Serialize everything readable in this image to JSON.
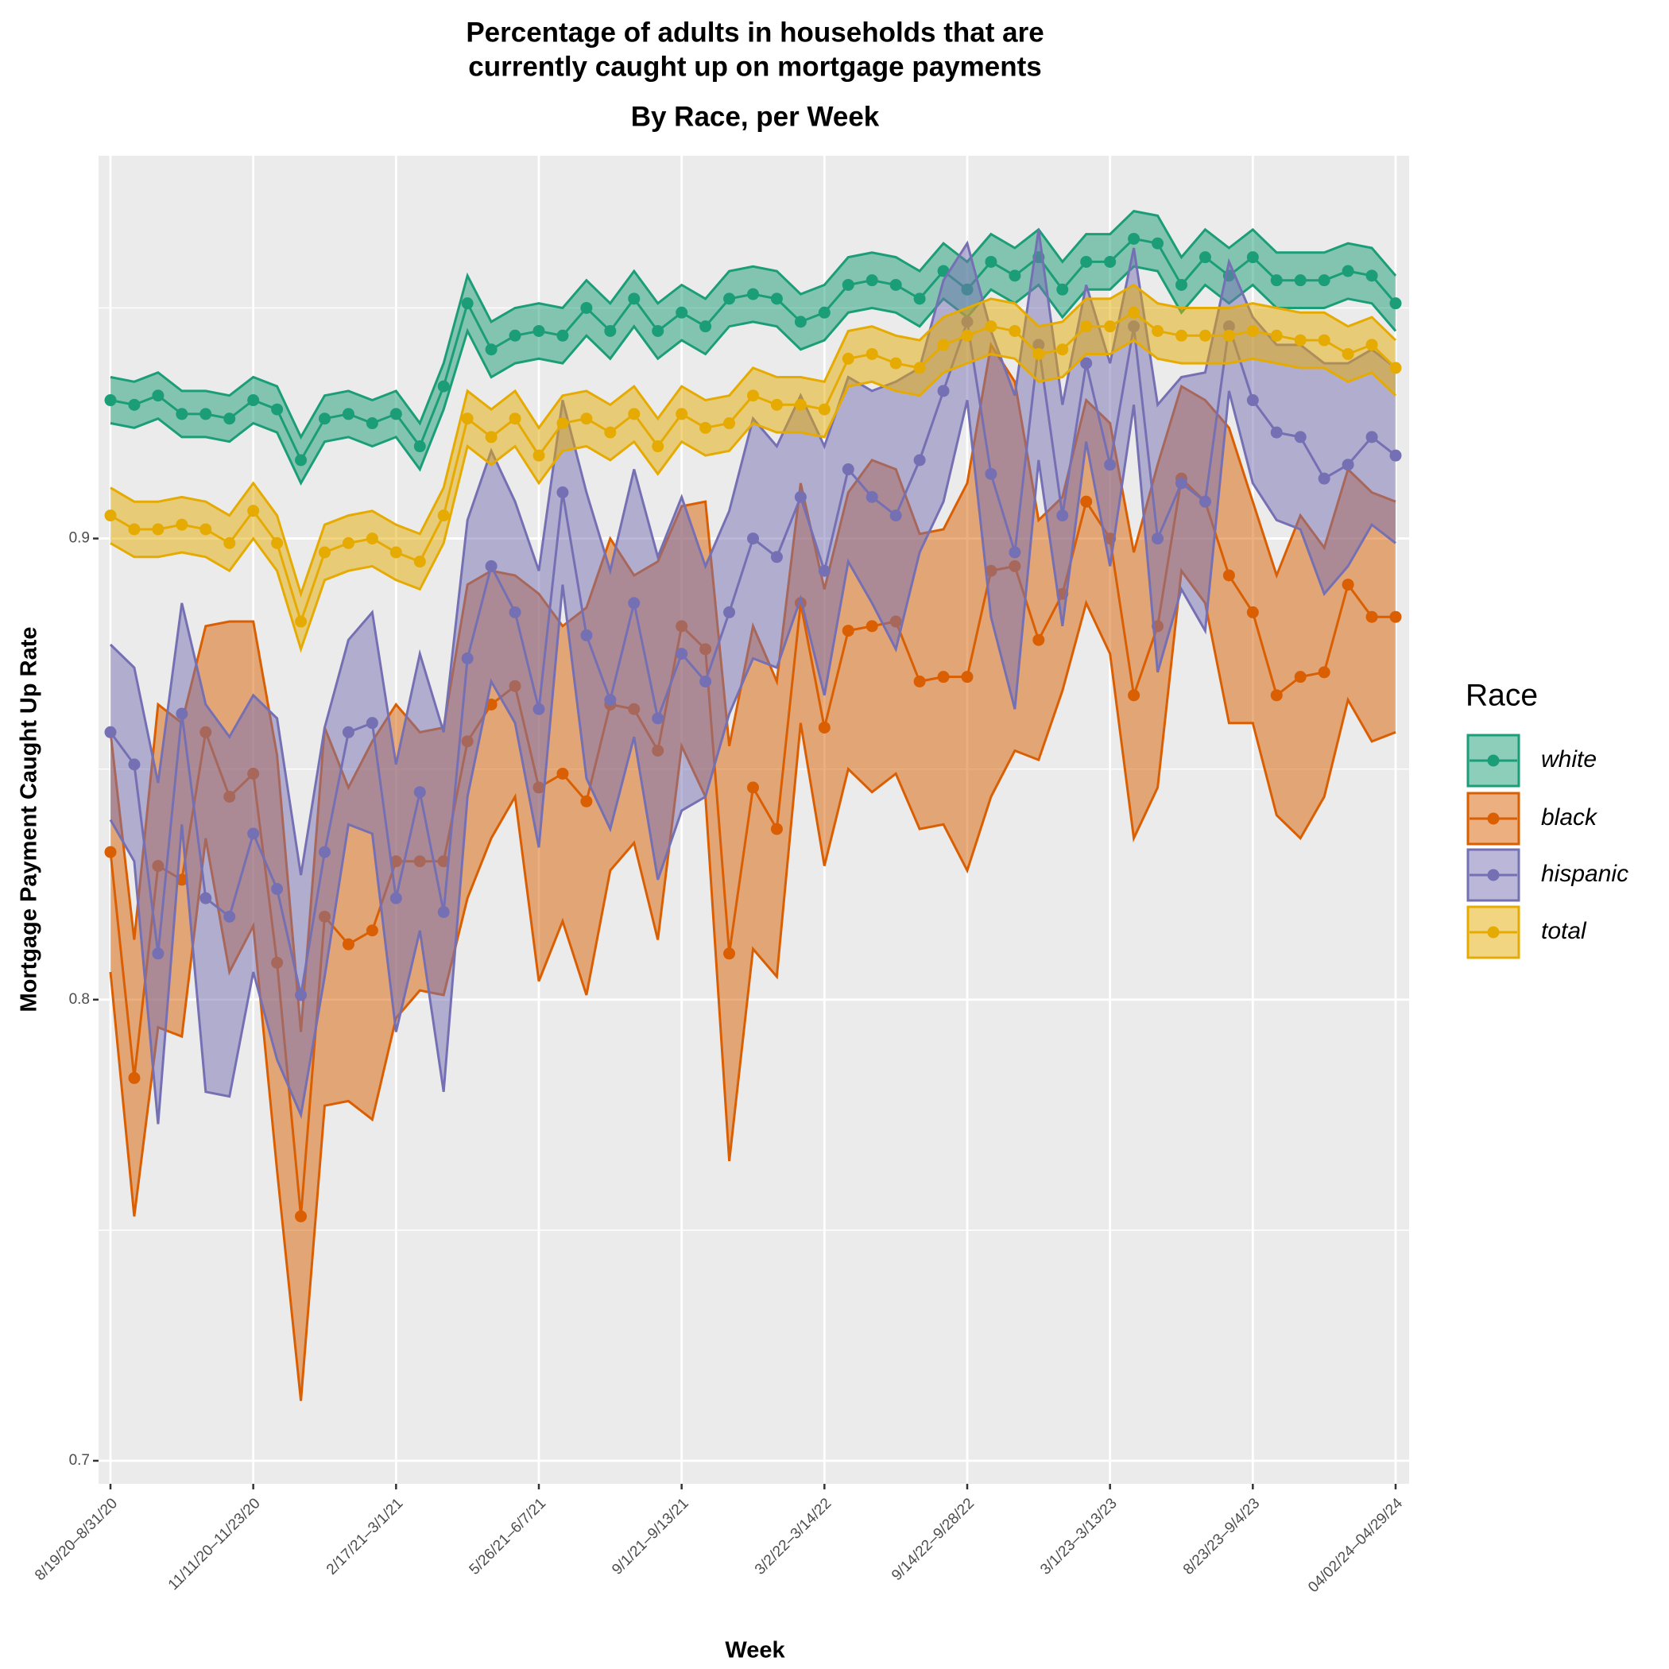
{
  "chart_data": {
    "type": "line_band",
    "title": [
      "Percentage of adults in households that are",
      "currently caught up on mortgage payments"
    ],
    "subtitle": "By Race, per Week",
    "x_label": "Week",
    "y_label": "Mortgage Payment Caught Up Rate",
    "legend_title": "Race",
    "legend_position": "right",
    "grid": true,
    "categories": [
      "8/19/20–8/31/20",
      null,
      null,
      null,
      null,
      null,
      "11/11/20–11/23/20",
      null,
      null,
      null,
      null,
      null,
      "2/17/21–3/1/21",
      null,
      null,
      null,
      null,
      null,
      "5/26/21–6/7/21",
      null,
      null,
      null,
      null,
      null,
      "9/1/21–9/13/21",
      null,
      null,
      null,
      null,
      null,
      "3/2/22–3/14/22",
      null,
      null,
      null,
      null,
      null,
      "9/14/22–9/28/22",
      null,
      null,
      null,
      null,
      null,
      "3/1/23–3/13/23",
      null,
      null,
      null,
      null,
      null,
      "8/23/23–9/4/23",
      null,
      null,
      null,
      null,
      null,
      "04/02/24–04/29/24"
    ],
    "ylim": [
      0.695,
      0.983
    ],
    "yticks": [
      0.7,
      0.8,
      0.9
    ],
    "minor_yticks": [
      0.75,
      0.85,
      0.95
    ],
    "series": [
      {
        "name": "white",
        "color": "#1b9e77",
        "values": [
          0.93,
          0.929,
          0.931,
          0.927,
          0.927,
          0.926,
          0.93,
          0.928,
          0.917,
          0.926,
          0.927,
          0.925,
          0.927,
          0.92,
          0.933,
          0.951,
          0.941,
          0.944,
          0.945,
          0.944,
          0.95,
          0.945,
          0.952,
          0.945,
          0.949,
          0.946,
          0.952,
          0.953,
          0.952,
          0.947,
          0.949,
          0.955,
          0.956,
          0.955,
          0.952,
          0.958,
          0.954,
          0.96,
          0.957,
          0.961,
          0.954,
          0.96,
          0.96,
          0.965,
          0.964,
          0.955,
          0.961,
          0.957,
          0.961,
          0.956,
          0.956,
          0.956,
          0.958,
          0.957,
          0.951
        ],
        "errors": [
          0.005,
          0.005,
          0.005,
          0.005,
          0.005,
          0.005,
          0.005,
          0.005,
          0.005,
          0.005,
          0.005,
          0.005,
          0.005,
          0.005,
          0.005,
          0.006,
          0.006,
          0.006,
          0.006,
          0.006,
          0.006,
          0.006,
          0.006,
          0.006,
          0.006,
          0.006,
          0.006,
          0.006,
          0.006,
          0.006,
          0.006,
          0.006,
          0.006,
          0.006,
          0.006,
          0.006,
          0.006,
          0.006,
          0.006,
          0.006,
          0.006,
          0.006,
          0.006,
          0.006,
          0.006,
          0.006,
          0.006,
          0.006,
          0.006,
          0.006,
          0.006,
          0.006,
          0.006,
          0.006,
          0.006
        ]
      },
      {
        "name": "black",
        "color": "#d95f02",
        "values": [
          0.832,
          0.783,
          0.829,
          0.826,
          0.858,
          0.844,
          0.849,
          0.808,
          0.753,
          0.818,
          0.812,
          0.815,
          0.83,
          0.83,
          0.83,
          0.856,
          0.864,
          0.868,
          0.846,
          0.849,
          0.843,
          0.864,
          0.863,
          0.854,
          0.881,
          0.876,
          0.81,
          0.846,
          0.837,
          0.886,
          0.859,
          0.88,
          0.881,
          0.882,
          0.869,
          0.87,
          0.87,
          0.893,
          0.894,
          0.878,
          0.888,
          0.908,
          0.9,
          0.866,
          0.881,
          0.913,
          0.908,
          0.892,
          0.884,
          0.866,
          0.87,
          0.871,
          0.89,
          0.883,
          0.883
        ],
        "errors": [
          0.026,
          0.03,
          0.035,
          0.034,
          0.023,
          0.038,
          0.033,
          0.045,
          0.04,
          0.041,
          0.034,
          0.041,
          0.034,
          0.028,
          0.029,
          0.034,
          0.029,
          0.024,
          0.042,
          0.032,
          0.042,
          0.036,
          0.029,
          0.041,
          0.026,
          0.032,
          0.045,
          0.035,
          0.032,
          0.026,
          0.03,
          0.03,
          0.036,
          0.033,
          0.032,
          0.032,
          0.042,
          0.049,
          0.04,
          0.026,
          0.021,
          0.022,
          0.025,
          0.031,
          0.035,
          0.02,
          0.022,
          0.032,
          0.024,
          0.026,
          0.035,
          0.027,
          0.025,
          0.027,
          0.025
        ]
      },
      {
        "name": "hispanic",
        "color": "#7570b3",
        "values": [
          0.858,
          0.851,
          0.81,
          0.862,
          0.822,
          0.818,
          0.836,
          0.824,
          0.801,
          0.832,
          0.858,
          0.86,
          0.822,
          0.845,
          0.819,
          0.874,
          0.894,
          0.884,
          0.863,
          0.91,
          0.879,
          0.865,
          0.886,
          0.861,
          0.875,
          0.869,
          0.884,
          0.9,
          0.896,
          0.909,
          0.893,
          0.915,
          0.909,
          0.905,
          0.917,
          0.932,
          0.947,
          0.914,
          0.897,
          0.942,
          0.905,
          0.938,
          0.916,
          0.946,
          0.9,
          0.912,
          0.908,
          0.946,
          0.93,
          0.923,
          0.922,
          0.913,
          0.916,
          0.922,
          0.918
        ],
        "errors": [
          0.019,
          0.021,
          0.037,
          0.024,
          0.042,
          0.039,
          0.03,
          0.037,
          0.026,
          0.027,
          0.02,
          0.024,
          0.029,
          0.03,
          0.039,
          0.03,
          0.025,
          0.024,
          0.03,
          0.02,
          0.031,
          0.028,
          0.029,
          0.035,
          0.034,
          0.025,
          0.022,
          0.026,
          0.024,
          0.022,
          0.027,
          0.02,
          0.023,
          0.029,
          0.02,
          0.024,
          0.017,
          0.031,
          0.034,
          0.025,
          0.024,
          0.017,
          0.022,
          0.017,
          0.029,
          0.023,
          0.028,
          0.014,
          0.018,
          0.019,
          0.02,
          0.025,
          0.022,
          0.019,
          0.019
        ]
      },
      {
        "name": "total",
        "color": "#e6ab02",
        "values": [
          0.905,
          0.902,
          0.902,
          0.903,
          0.902,
          0.899,
          0.906,
          0.899,
          0.882,
          0.897,
          0.899,
          0.9,
          0.897,
          0.895,
          0.905,
          0.926,
          0.922,
          0.926,
          0.918,
          0.925,
          0.926,
          0.923,
          0.927,
          0.92,
          0.927,
          0.924,
          0.925,
          0.931,
          0.929,
          0.929,
          0.928,
          0.939,
          0.94,
          0.938,
          0.937,
          0.942,
          0.944,
          0.946,
          0.945,
          0.94,
          0.941,
          0.946,
          0.946,
          0.949,
          0.945,
          0.944,
          0.944,
          0.944,
          0.945,
          0.944,
          0.943,
          0.943,
          0.94,
          0.942,
          0.937
        ],
        "errors": [
          0.006,
          0.006,
          0.006,
          0.006,
          0.006,
          0.006,
          0.006,
          0.006,
          0.006,
          0.006,
          0.006,
          0.006,
          0.006,
          0.006,
          0.006,
          0.006,
          0.006,
          0.006,
          0.006,
          0.006,
          0.006,
          0.006,
          0.006,
          0.006,
          0.006,
          0.006,
          0.006,
          0.006,
          0.006,
          0.006,
          0.006,
          0.006,
          0.006,
          0.006,
          0.006,
          0.006,
          0.006,
          0.006,
          0.006,
          0.006,
          0.006,
          0.006,
          0.006,
          0.006,
          0.006,
          0.006,
          0.006,
          0.006,
          0.006,
          0.006,
          0.006,
          0.006,
          0.006,
          0.006,
          0.006
        ]
      }
    ]
  }
}
